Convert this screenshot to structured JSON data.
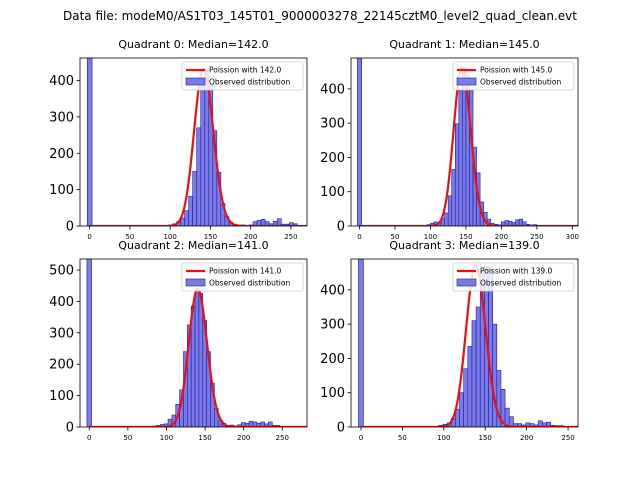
{
  "figure": {
    "suptitle": "Data file: modeM0/AS1T03_145T01_9000003278_22145cztM0_level2_quad_clean.evt"
  },
  "colors": {
    "bar_fill": "#7a7ae8",
    "bar_edge": "#1c1c9a",
    "curve": "#e81010"
  },
  "legend_labels": {
    "observed": "Observed distribution"
  },
  "chart_data": [
    {
      "type": "bar+line",
      "title": "Quadrant 0: Median=142.0",
      "median": 142.0,
      "poisson_label": "Poission with 142.0",
      "xlim": [
        -12,
        270
      ],
      "ylim": [
        0,
        462
      ],
      "xticks": [
        0,
        50,
        100,
        150,
        200,
        250
      ],
      "yticks": [
        0,
        100,
        200,
        300,
        400
      ],
      "zero_bin_height": 462,
      "hist": {
        "bin_edges": [
          98,
          103,
          108,
          113,
          118,
          123,
          128,
          133,
          138,
          143,
          148,
          153,
          158,
          163,
          168,
          173,
          178,
          183,
          188,
          193,
          198,
          203,
          208,
          213,
          218,
          223,
          228,
          233,
          238,
          243,
          248,
          253,
          258
        ],
        "counts": [
          3,
          6,
          12,
          22,
          42,
          82,
          150,
          270,
          400,
          432,
          390,
          262,
          148,
          62,
          26,
          10,
          5,
          3,
          3,
          1,
          3,
          12,
          16,
          18,
          12,
          6,
          13,
          20,
          5,
          5,
          9,
          6
        ]
      }
    },
    {
      "type": "bar+line",
      "title": "Quadrant 1: Median=145.0",
      "median": 145.0,
      "poisson_label": "Poission with 145.0",
      "xlim": [
        -12,
        308
      ],
      "ylim": [
        0,
        490
      ],
      "xticks": [
        0,
        50,
        100,
        150,
        200,
        250,
        300
      ],
      "yticks": [
        0,
        100,
        200,
        300,
        400
      ],
      "zero_bin_height": 490,
      "hist": {
        "bin_edges": [
          95,
          100,
          105,
          110,
          115,
          120,
          125,
          130,
          135,
          140,
          145,
          150,
          155,
          160,
          165,
          170,
          175,
          180,
          185,
          190,
          195,
          200,
          205,
          210,
          215,
          220,
          225,
          230,
          235,
          240,
          245,
          250
        ],
        "counts": [
          4,
          8,
          12,
          8,
          22,
          38,
          88,
          165,
          298,
          395,
          462,
          440,
          395,
          230,
          155,
          70,
          40,
          20,
          8,
          5,
          3,
          12,
          16,
          14,
          10,
          18,
          20,
          12,
          5,
          3,
          4
        ]
      }
    },
    {
      "type": "bar+line",
      "title": "Quadrant 2: Median=141.0",
      "median": 141.0,
      "poisson_label": "Poission with 141.0",
      "xlim": [
        -12,
        282
      ],
      "ylim": [
        0,
        535
      ],
      "xticks": [
        0,
        50,
        100,
        150,
        200,
        250
      ],
      "yticks": [
        0,
        100,
        200,
        300,
        400,
        500
      ],
      "zero_bin_height": 535,
      "hist": {
        "bin_edges": [
          82,
          87,
          92,
          97,
          102,
          107,
          112,
          117,
          122,
          127,
          132,
          137,
          142,
          147,
          152,
          157,
          162,
          167,
          172,
          177,
          182,
          187,
          192,
          197,
          202,
          207,
          212,
          217,
          222,
          227,
          232,
          237,
          242,
          247
        ],
        "counts": [
          3,
          5,
          8,
          10,
          25,
          38,
          72,
          118,
          240,
          325,
          385,
          440,
          425,
          340,
          240,
          140,
          60,
          22,
          12,
          5,
          6,
          3,
          7,
          14,
          12,
          18,
          16,
          12,
          16,
          10,
          16,
          5,
          5
        ]
      }
    },
    {
      "type": "bar+line",
      "title": "Quadrant 3: Median=139.0",
      "median": 139.0,
      "poisson_label": "Poission with 139.0",
      "xlim": [
        -12,
        262
      ],
      "ylim": [
        0,
        490
      ],
      "xticks": [
        0,
        50,
        100,
        150,
        200,
        250
      ],
      "yticks": [
        0,
        100,
        200,
        300,
        400
      ],
      "zero_bin_height": 490,
      "hist": {
        "bin_edges": [
          94,
          99,
          104,
          109,
          114,
          119,
          124,
          129,
          134,
          139,
          144,
          149,
          154,
          159,
          164,
          169,
          174,
          179,
          184,
          189,
          194,
          199,
          204,
          209,
          214,
          219,
          224,
          229,
          234,
          239,
          244
        ],
        "counts": [
          5,
          8,
          12,
          25,
          52,
          100,
          170,
          235,
          310,
          350,
          455,
          470,
          460,
          300,
          165,
          110,
          55,
          30,
          10,
          10,
          6,
          12,
          10,
          6,
          18,
          12,
          14,
          5,
          4,
          4
        ]
      }
    }
  ]
}
